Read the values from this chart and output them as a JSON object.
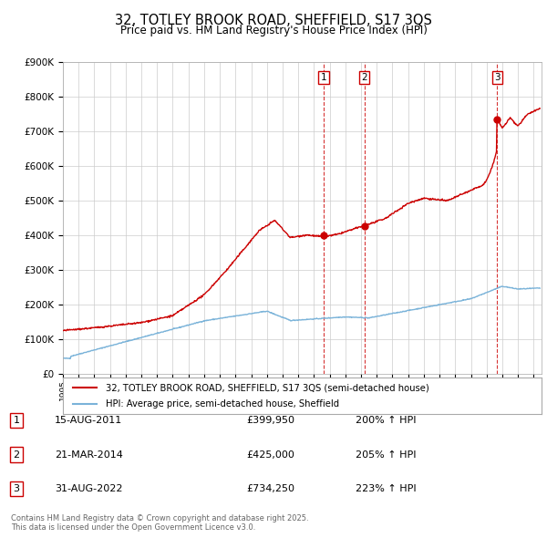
{
  "title": "32, TOTLEY BROOK ROAD, SHEFFIELD, S17 3QS",
  "subtitle": "Price paid vs. HM Land Registry's House Price Index (HPI)",
  "hpi_color": "#7ab3d9",
  "price_color": "#cc0000",
  "background_color": "#ffffff",
  "grid_color": "#cccccc",
  "ylim": [
    0,
    900000
  ],
  "yticks": [
    0,
    100000,
    200000,
    300000,
    400000,
    500000,
    600000,
    700000,
    800000,
    900000
  ],
  "xlim_start": 1995.0,
  "xlim_end": 2025.5,
  "transactions": [
    {
      "num": 1,
      "date": "15-AUG-2011",
      "price": 399950,
      "pct": "200%",
      "year": 2011.62
    },
    {
      "num": 2,
      "date": "21-MAR-2014",
      "price": 425000,
      "pct": "205%",
      "year": 2014.22
    },
    {
      "num": 3,
      "date": "31-AUG-2022",
      "price": 734250,
      "pct": "223%",
      "year": 2022.66
    }
  ],
  "legend_label_price": "32, TOTLEY BROOK ROAD, SHEFFIELD, S17 3QS (semi-detached house)",
  "legend_label_hpi": "HPI: Average price, semi-detached house, Sheffield",
  "footnote": "Contains HM Land Registry data © Crown copyright and database right 2025.\nThis data is licensed under the Open Government Licence v3.0."
}
